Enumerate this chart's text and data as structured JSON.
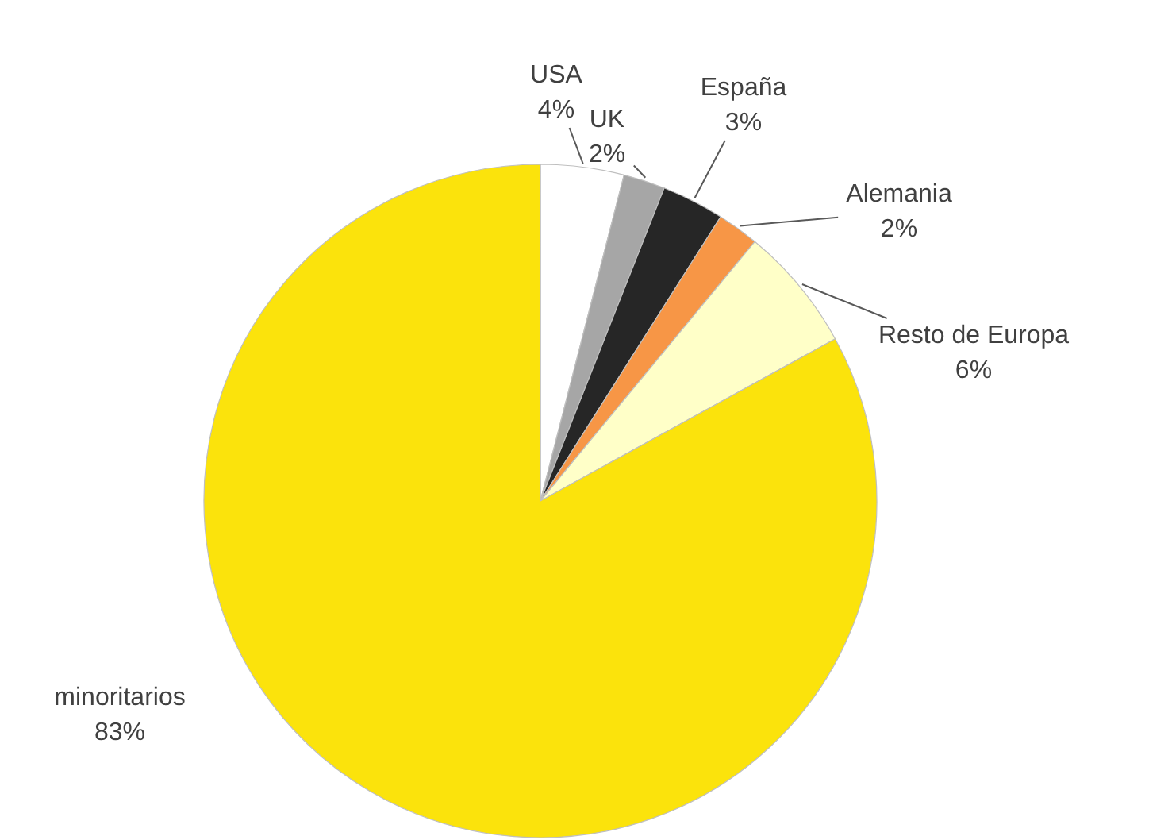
{
  "chart_data": {
    "type": "pie",
    "categories": [
      "USA",
      "UK",
      "España",
      "Alemania",
      "Resto de Europa",
      "minoritarios"
    ],
    "values": [
      4,
      2,
      3,
      2,
      6,
      83
    ],
    "value_labels": [
      "4%",
      "2%",
      "3%",
      "2%",
      "6%",
      "83%"
    ],
    "colors": [
      "#ffffff",
      "#a6a6a6",
      "#262626",
      "#f79646",
      "#ffffc8",
      "#fbe30c"
    ],
    "legend": false
  }
}
